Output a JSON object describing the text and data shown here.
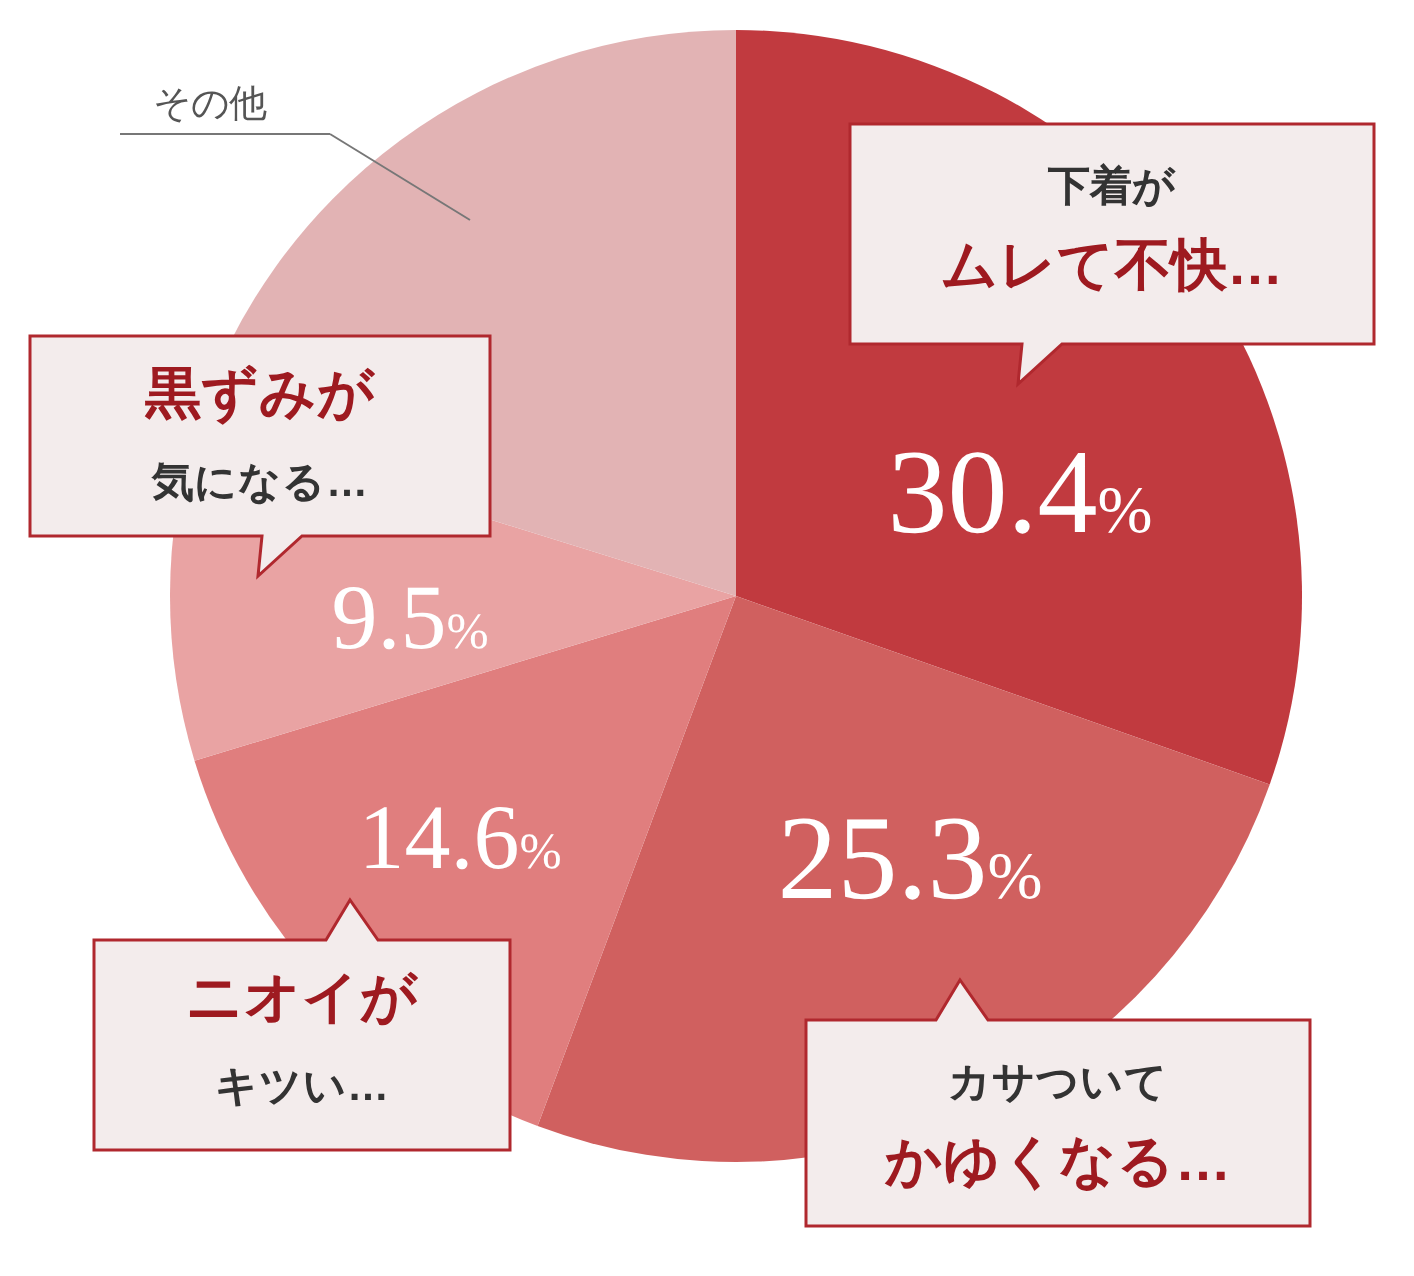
{
  "chart_data": {
    "type": "pie",
    "categories": [
      "下着がムレて不快…",
      "カサついてかゆくなる…",
      "ニオイがキツい…",
      "黒ずみが気になる…",
      "その他"
    ],
    "values": [
      30.4,
      25.3,
      14.6,
      9.5,
      20.2
    ],
    "colors": [
      "#c13a3f",
      "#d0605f",
      "#e07e7e",
      "#e9a3a3",
      "#e2b3b4"
    ],
    "value_labels": [
      "30.4%",
      "25.3%",
      "14.6%",
      "9.5%",
      null
    ],
    "legend": false
  }
}
